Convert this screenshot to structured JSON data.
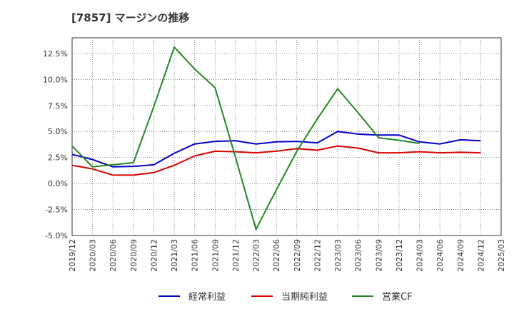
{
  "title": "[7857]  マージンの推移",
  "chart_data": {
    "type": "line",
    "categories": [
      "2019/12",
      "2020/03",
      "2020/06",
      "2020/09",
      "2020/12",
      "2021/03",
      "2021/06",
      "2021/09",
      "2021/12",
      "2022/03",
      "2022/06",
      "2022/09",
      "2022/12",
      "2023/03",
      "2023/06",
      "2023/09",
      "2023/12",
      "2024/03",
      "2024/06",
      "2024/09",
      "2024/12",
      "2025/03"
    ],
    "y_ticks": [
      "12.5%",
      "10.0%",
      "7.5%",
      "5.0%",
      "2.5%",
      "0.0%",
      "-2.5%",
      "-5.0%"
    ],
    "y_tick_values": [
      12.5,
      10.0,
      7.5,
      5.0,
      2.5,
      0.0,
      -2.5,
      -5.0
    ],
    "ylim": [
      -5.0,
      14.0
    ],
    "grid": true,
    "legend_position": "bottom",
    "series": [
      {
        "name": "経常利益",
        "color": "#0000cc",
        "values": [
          2.8,
          2.3,
          1.6,
          1.65,
          1.8,
          2.9,
          3.8,
          4.05,
          4.1,
          3.8,
          4.0,
          4.05,
          3.9,
          5.0,
          4.75,
          4.65,
          4.65,
          4.0,
          3.8,
          4.2,
          4.1,
          null
        ]
      },
      {
        "name": "当期純利益",
        "color": "#dd0000",
        "values": [
          1.75,
          1.4,
          0.8,
          0.8,
          1.05,
          1.75,
          2.65,
          3.1,
          3.05,
          2.95,
          3.1,
          3.35,
          3.2,
          3.6,
          3.4,
          2.95,
          2.95,
          3.05,
          2.95,
          3.0,
          2.95,
          null
        ]
      },
      {
        "name": "営業CF",
        "color": "#228822",
        "values": [
          3.6,
          1.6,
          1.8,
          2.0,
          7.4,
          13.1,
          11.0,
          9.2,
          2.5,
          -4.4,
          -0.6,
          3.1,
          6.2,
          9.1,
          6.8,
          4.4,
          4.15,
          3.85,
          null,
          null,
          null,
          null
        ]
      }
    ]
  }
}
